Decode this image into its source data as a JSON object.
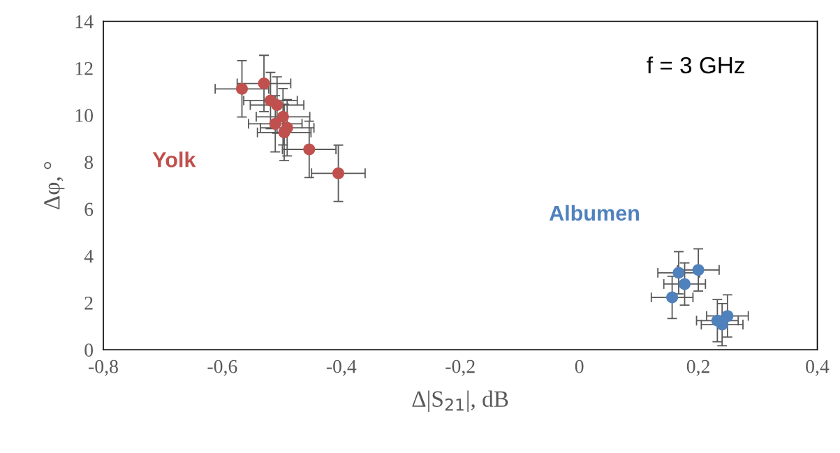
{
  "chart_data": {
    "type": "scatter",
    "xlabel": "Δ|S$_{21}$|, dB",
    "ylabel": "Δφ, °",
    "annotations": [
      "f = 3 GHz"
    ],
    "xlim": [
      -0.8,
      0.4
    ],
    "xticks": [
      {
        "value": -0.8,
        "label": "-0,8"
      },
      {
        "value": -0.6,
        "label": "-0,6"
      },
      {
        "value": -0.4,
        "label": "-0,4"
      },
      {
        "value": -0.2,
        "label": "-0,2"
      },
      {
        "value": 0,
        "label": "0"
      },
      {
        "value": 0.2,
        "label": "0,2"
      },
      {
        "value": 0.4,
        "label": "0,4"
      }
    ],
    "ylim": [
      0,
      14
    ],
    "yticks": [
      0,
      2,
      4,
      6,
      8,
      10,
      12,
      14
    ],
    "grid": false,
    "legend": false,
    "marker": "circle",
    "series": [
      {
        "name": "Yolk",
        "color": "#c0504d",
        "x": [
          -0.567,
          -0.53,
          -0.519,
          -0.508,
          -0.498,
          -0.511,
          -0.491,
          -0.496,
          -0.454,
          -0.405
        ],
        "values": [
          11.12,
          11.35,
          10.62,
          10.43,
          9.93,
          9.63,
          9.46,
          9.26,
          8.54,
          7.52
        ],
        "errors": [
          1.2,
          1.2,
          1.2,
          1.2,
          1.2,
          1.2,
          1.2,
          1.2,
          1.2,
          1.2
        ],
        "xerrors": [
          0.045,
          0.045,
          0.045,
          0.045,
          0.045,
          0.045,
          0.045,
          0.045,
          0.045,
          0.045
        ]
      },
      {
        "name": "Albumen",
        "color": "#4f81bd",
        "x": [
          0.167,
          0.177,
          0.2,
          0.156,
          0.249,
          0.232,
          0.24
        ],
        "values": [
          3.28,
          2.8,
          3.4,
          2.23,
          1.44,
          1.24,
          1.07
        ],
        "errors": [
          0.9,
          0.9,
          0.9,
          0.9,
          0.9,
          0.9,
          0.9
        ],
        "xerrors": [
          0.035,
          0.035,
          0.035,
          0.035,
          0.035,
          0.035,
          0.035
        ]
      }
    ]
  }
}
